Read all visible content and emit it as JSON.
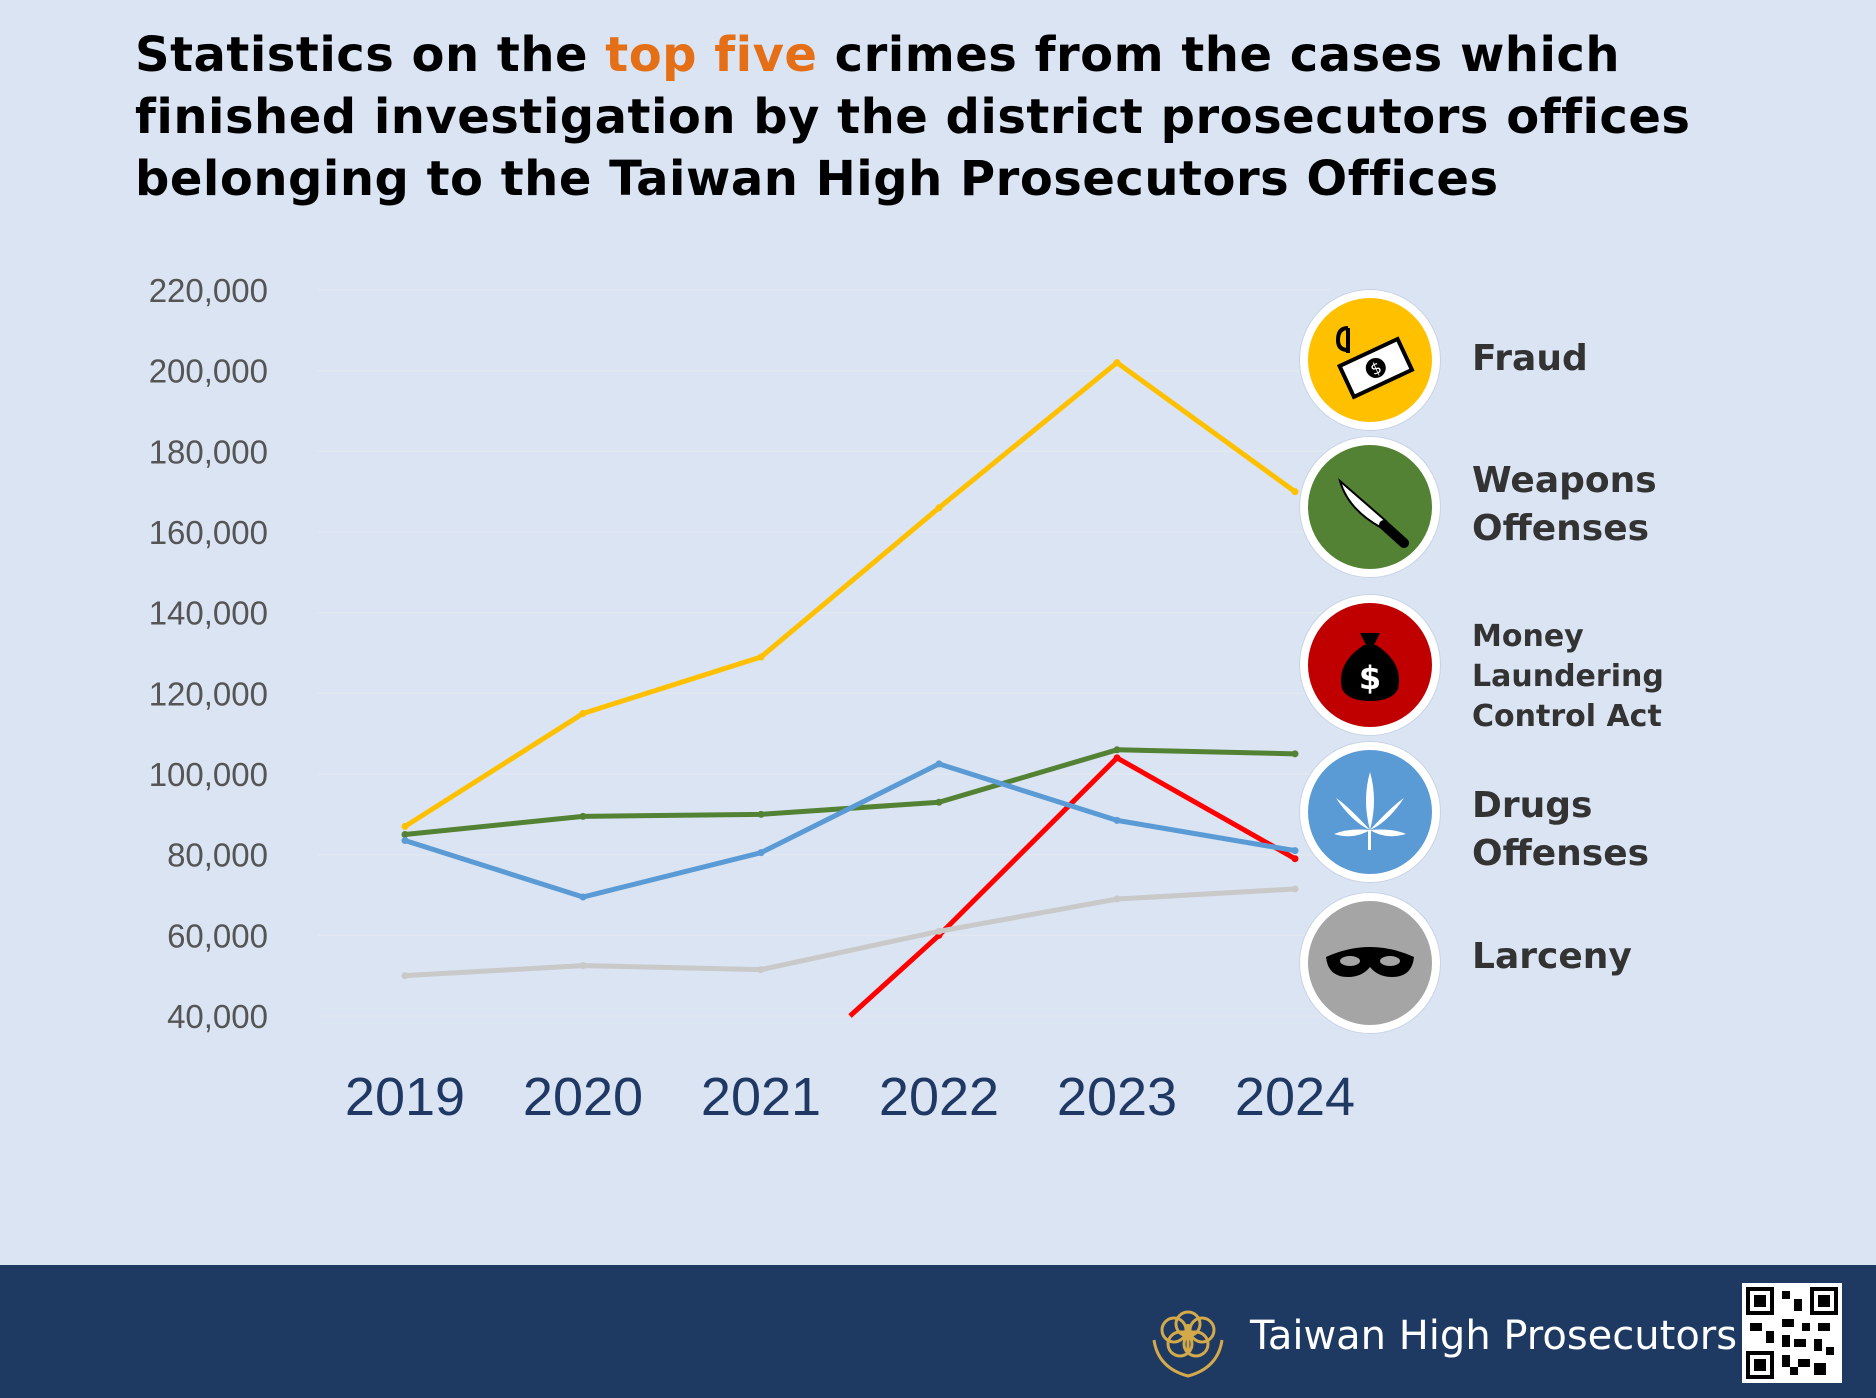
{
  "title": {
    "part1": "Statistics on the ",
    "highlight": "top five",
    "part2": " crimes from the cases which finished investigation by the district prosecutors offices belonging to the Taiwan High Prosecutors Offices"
  },
  "colors": {
    "highlight": "#e46f17",
    "background": "#dae4f3",
    "footer": "#1e3a63"
  },
  "chart_data": {
    "type": "line",
    "title": "",
    "xlabel": "",
    "ylabel": "",
    "x": [
      "2019",
      "2020",
      "2021",
      "2022",
      "2023",
      "2024"
    ],
    "ylim": [
      40000,
      220000
    ],
    "yticks": [
      "40,000",
      "60,000",
      "80,000",
      "100,000",
      "120,000",
      "140,000",
      "160,000",
      "180,000",
      "200,000",
      "220,000"
    ],
    "grid": true,
    "legend": "right",
    "series": [
      {
        "name": "Fraud",
        "color": "#ffc000",
        "values": [
          87000,
          115000,
          129000,
          166000,
          202000,
          170000
        ]
      },
      {
        "name": "Weapons Offenses",
        "color": "#548235",
        "values": [
          85000,
          89500,
          90000,
          93000,
          106000,
          105000
        ]
      },
      {
        "name": "Money Laundering Control Act",
        "color": "#ff0000",
        "values": [
          null,
          null,
          null,
          60000,
          104000,
          79000
        ],
        "from": {
          "x": 2.5,
          "y": 40000
        }
      },
      {
        "name": "Drugs Offenses",
        "color": "#5b9bd5",
        "values": [
          83500,
          69500,
          80500,
          102500,
          88500,
          81000
        ]
      },
      {
        "name": "Larceny",
        "color": "#c9c9c9",
        "values": [
          50000,
          52500,
          51500,
          61000,
          69000,
          71500
        ]
      }
    ]
  },
  "legend": [
    {
      "label": "Fraud",
      "icon": "money-hook-icon",
      "color": "#ffc000"
    },
    {
      "label": "Weapons\n Offenses",
      "icon": "knife-icon",
      "color": "#548235"
    },
    {
      "label": "Money Laundering\nControl Act",
      "icon": "money-bag-icon",
      "color": "#c00000"
    },
    {
      "label": "Drugs Offenses",
      "icon": "cannabis-leaf-icon",
      "color": "#5b9bd5"
    },
    {
      "label": "Larceny",
      "icon": "thief-mask-icon",
      "color": "#a5a5a5"
    }
  ],
  "footer": {
    "org": "Taiwan High Prosecutors",
    "emblem": "prosecutor-emblem-icon",
    "qr": "qr-code-icon"
  }
}
